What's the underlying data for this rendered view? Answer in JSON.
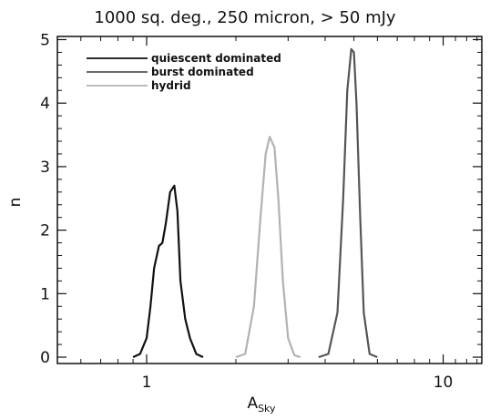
{
  "chart_data": {
    "type": "line",
    "title": "1000 sq. deg., 250 micron, > 50 mJy",
    "xlabel": "A",
    "xlabel_sub": "Sky",
    "ylabel": "n",
    "x_scale": "log",
    "xlim": [
      0.5,
      13.5
    ],
    "ylim": [
      -0.1,
      5.05
    ],
    "x_ticks": [
      {
        "value": 1,
        "label": "1"
      },
      {
        "value": 10,
        "label": "10"
      }
    ],
    "y_ticks": [
      {
        "value": 0,
        "label": "0"
      },
      {
        "value": 1,
        "label": "1"
      },
      {
        "value": 2,
        "label": "2"
      },
      {
        "value": 3,
        "label": "3"
      },
      {
        "value": 4,
        "label": "4"
      },
      {
        "value": 5,
        "label": "5"
      }
    ],
    "grid": false,
    "legend_position": "top-left",
    "series": [
      {
        "name": "quiescent dominated",
        "color": "#111111",
        "x": [
          0.9,
          0.95,
          1.0,
          1.03,
          1.06,
          1.1,
          1.13,
          1.16,
          1.2,
          1.24,
          1.27,
          1.3,
          1.35,
          1.4,
          1.47,
          1.55
        ],
        "y": [
          0.0,
          0.05,
          0.3,
          0.8,
          1.4,
          1.75,
          1.8,
          2.1,
          2.6,
          2.7,
          2.3,
          1.2,
          0.6,
          0.3,
          0.05,
          0.0
        ]
      },
      {
        "name": "burst dominated",
        "color": "#555555",
        "x": [
          3.8,
          4.1,
          4.4,
          4.6,
          4.75,
          4.9,
          5.0,
          5.1,
          5.25,
          5.4,
          5.65,
          6.0
        ],
        "y": [
          0.0,
          0.05,
          0.7,
          2.5,
          4.2,
          4.85,
          4.8,
          4.0,
          2.2,
          0.7,
          0.05,
          0.0
        ]
      },
      {
        "name": "hydrid",
        "color": "#b2b2b2",
        "x": [
          2.0,
          2.15,
          2.3,
          2.42,
          2.52,
          2.6,
          2.7,
          2.78,
          2.88,
          3.0,
          3.15,
          3.3
        ],
        "y": [
          0.0,
          0.05,
          0.8,
          2.2,
          3.2,
          3.47,
          3.3,
          2.5,
          1.2,
          0.3,
          0.03,
          0.0
        ]
      }
    ]
  }
}
